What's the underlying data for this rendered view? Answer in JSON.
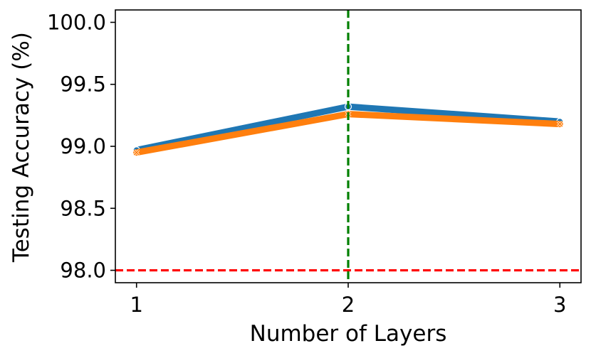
{
  "chart_data": {
    "type": "line",
    "title": "",
    "xlabel": "Number of Layers",
    "ylabel": "Testing Accuracy (%)",
    "x": [
      1,
      2,
      3
    ],
    "xticks": [
      1,
      2,
      3
    ],
    "xlim": [
      0.9,
      3.1
    ],
    "ylim": [
      97.9,
      100.1
    ],
    "yticks": [
      98.0,
      98.5,
      99.0,
      99.5,
      100.0
    ],
    "ytick_labels": [
      "98.0",
      "98.5",
      "99.0",
      "99.5",
      "100.0"
    ],
    "grid": false,
    "legend": "none",
    "series": [
      {
        "values": [
          98.97,
          99.32,
          99.2
        ],
        "color": "#1f77b4",
        "marker": "circle"
      },
      {
        "values": [
          98.95,
          99.26,
          99.18
        ],
        "color": "#ff7f0e",
        "marker": "x"
      }
    ],
    "reference_lines": [
      {
        "orientation": "horizontal",
        "value": 98.0,
        "color": "#ff0000",
        "style": "dashed"
      },
      {
        "orientation": "vertical",
        "value": 2,
        "color": "#008000",
        "style": "dashed"
      }
    ]
  }
}
